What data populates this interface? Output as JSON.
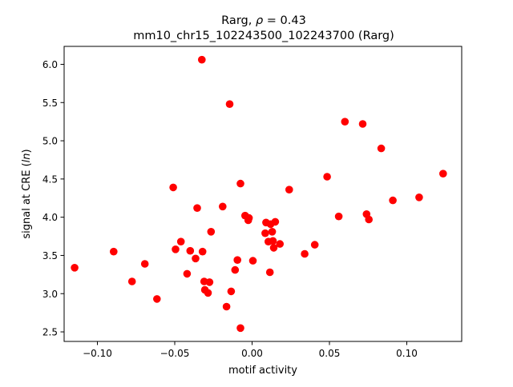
{
  "chart_data": {
    "type": "scatter",
    "title_line1_prefix": "Rarg, ",
    "title_line1_symbol": "ρ",
    "title_line1_suffix": " = 0.43",
    "title_line2": "mm10_chr15_102243500_102243700 (Rarg)",
    "xlabel": "motif activity",
    "ylabel_prefix": "signal at CRE (",
    "ylabel_italic": "ln",
    "ylabel_suffix": ")",
    "xlim": [
      -0.1215,
      0.1355
    ],
    "ylim": [
      2.375,
      6.235
    ],
    "x_ticks": [
      {
        "value": -0.1,
        "label": "−0.10"
      },
      {
        "value": -0.05,
        "label": "−0.05"
      },
      {
        "value": 0.0,
        "label": "0.00"
      },
      {
        "value": 0.05,
        "label": "0.05"
      },
      {
        "value": 0.1,
        "label": "0.10"
      }
    ],
    "y_ticks": [
      {
        "value": 2.5,
        "label": "2.5"
      },
      {
        "value": 3.0,
        "label": "3.0"
      },
      {
        "value": 3.5,
        "label": "3.5"
      },
      {
        "value": 4.0,
        "label": "4.0"
      },
      {
        "value": 4.5,
        "label": "4.5"
      },
      {
        "value": 5.0,
        "label": "5.0"
      },
      {
        "value": 5.5,
        "label": "5.5"
      },
      {
        "value": 6.0,
        "label": "6.0"
      }
    ],
    "marker_color": "#ff0000",
    "grid": false,
    "points": [
      {
        "x": -0.1147,
        "y": 3.34
      },
      {
        "x": -0.0895,
        "y": 3.55
      },
      {
        "x": -0.0776,
        "y": 3.16
      },
      {
        "x": -0.0693,
        "y": 3.39
      },
      {
        "x": -0.0615,
        "y": 2.93
      },
      {
        "x": -0.051,
        "y": 4.39
      },
      {
        "x": -0.0495,
        "y": 3.58
      },
      {
        "x": -0.046,
        "y": 3.68
      },
      {
        "x": -0.042,
        "y": 3.26
      },
      {
        "x": -0.04,
        "y": 3.56
      },
      {
        "x": -0.0365,
        "y": 3.46
      },
      {
        "x": -0.0355,
        "y": 4.12
      },
      {
        "x": -0.0325,
        "y": 6.06
      },
      {
        "x": -0.032,
        "y": 3.55
      },
      {
        "x": -0.031,
        "y": 3.16
      },
      {
        "x": -0.0305,
        "y": 3.05
      },
      {
        "x": -0.0285,
        "y": 3.01
      },
      {
        "x": -0.0275,
        "y": 3.15
      },
      {
        "x": -0.0265,
        "y": 3.81
      },
      {
        "x": -0.019,
        "y": 4.14
      },
      {
        "x": -0.0165,
        "y": 2.83
      },
      {
        "x": -0.0145,
        "y": 5.48
      },
      {
        "x": -0.0135,
        "y": 3.03
      },
      {
        "x": -0.011,
        "y": 3.31
      },
      {
        "x": -0.0095,
        "y": 3.44
      },
      {
        "x": -0.0075,
        "y": 4.44
      },
      {
        "x": -0.0075,
        "y": 2.55
      },
      {
        "x": -0.0045,
        "y": 4.02
      },
      {
        "x": -0.0025,
        "y": 3.96
      },
      {
        "x": -0.002,
        "y": 3.99
      },
      {
        "x": 0.0005,
        "y": 3.43
      },
      {
        "x": 0.0085,
        "y": 3.79
      },
      {
        "x": 0.009,
        "y": 3.93
      },
      {
        "x": 0.0105,
        "y": 3.68
      },
      {
        "x": 0.0115,
        "y": 3.28
      },
      {
        "x": 0.012,
        "y": 3.91
      },
      {
        "x": 0.013,
        "y": 3.81
      },
      {
        "x": 0.0135,
        "y": 3.69
      },
      {
        "x": 0.014,
        "y": 3.6
      },
      {
        "x": 0.015,
        "y": 3.94
      },
      {
        "x": 0.018,
        "y": 3.65
      },
      {
        "x": 0.024,
        "y": 4.36
      },
      {
        "x": 0.034,
        "y": 3.52
      },
      {
        "x": 0.0405,
        "y": 3.64
      },
      {
        "x": 0.0485,
        "y": 4.53
      },
      {
        "x": 0.056,
        "y": 4.01
      },
      {
        "x": 0.06,
        "y": 5.25
      },
      {
        "x": 0.0715,
        "y": 5.22
      },
      {
        "x": 0.074,
        "y": 4.04
      },
      {
        "x": 0.0755,
        "y": 3.97
      },
      {
        "x": 0.0835,
        "y": 4.9
      },
      {
        "x": 0.091,
        "y": 4.22
      },
      {
        "x": 0.108,
        "y": 4.26
      },
      {
        "x": 0.1235,
        "y": 4.57
      }
    ]
  }
}
